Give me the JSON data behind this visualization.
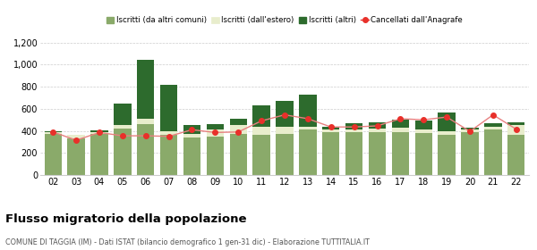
{
  "years": [
    "02",
    "03",
    "04",
    "05",
    "06",
    "07",
    "08",
    "09",
    "10",
    "11",
    "12",
    "13",
    "14",
    "15",
    "16",
    "17",
    "18",
    "19",
    "20",
    "21",
    "22"
  ],
  "iscritti_altri_comuni": [
    370,
    330,
    370,
    420,
    460,
    360,
    340,
    350,
    370,
    360,
    370,
    410,
    390,
    390,
    390,
    390,
    380,
    360,
    390,
    410,
    360
  ],
  "iscritti_estero": [
    15,
    30,
    20,
    30,
    50,
    35,
    30,
    60,
    80,
    80,
    70,
    25,
    25,
    25,
    30,
    35,
    35,
    40,
    25,
    30,
    95
  ],
  "iscritti_altri": [
    10,
    5,
    15,
    195,
    530,
    420,
    85,
    50,
    60,
    190,
    230,
    290,
    25,
    50,
    60,
    80,
    75,
    165,
    15,
    25,
    20
  ],
  "cancellati": [
    390,
    315,
    385,
    355,
    355,
    350,
    410,
    385,
    390,
    490,
    545,
    510,
    435,
    435,
    445,
    510,
    500,
    525,
    395,
    545,
    415
  ],
  "color_comuni": "#8aaa6a",
  "color_estero": "#e8edcc",
  "color_altri": "#2d6b2d",
  "color_cancellati": "#e8302a",
  "color_line": "#e88080",
  "title": "Flusso migratorio della popolazione",
  "subtitle": "COMUNE DI TAGGIA (IM) - Dati ISTAT (bilancio demografico 1 gen-31 dic) - Elaborazione TUTTITALIA.IT",
  "legend_labels": [
    "Iscritti (da altri comuni)",
    "Iscritti (dall'estero)",
    "Iscritti (altri)",
    "Cancellati dall'Anagrafe"
  ],
  "ylim": [
    0,
    1200
  ],
  "yticks": [
    0,
    200,
    400,
    600,
    800,
    1000,
    1200
  ],
  "background_color": "#ffffff",
  "grid_color": "#cccccc"
}
